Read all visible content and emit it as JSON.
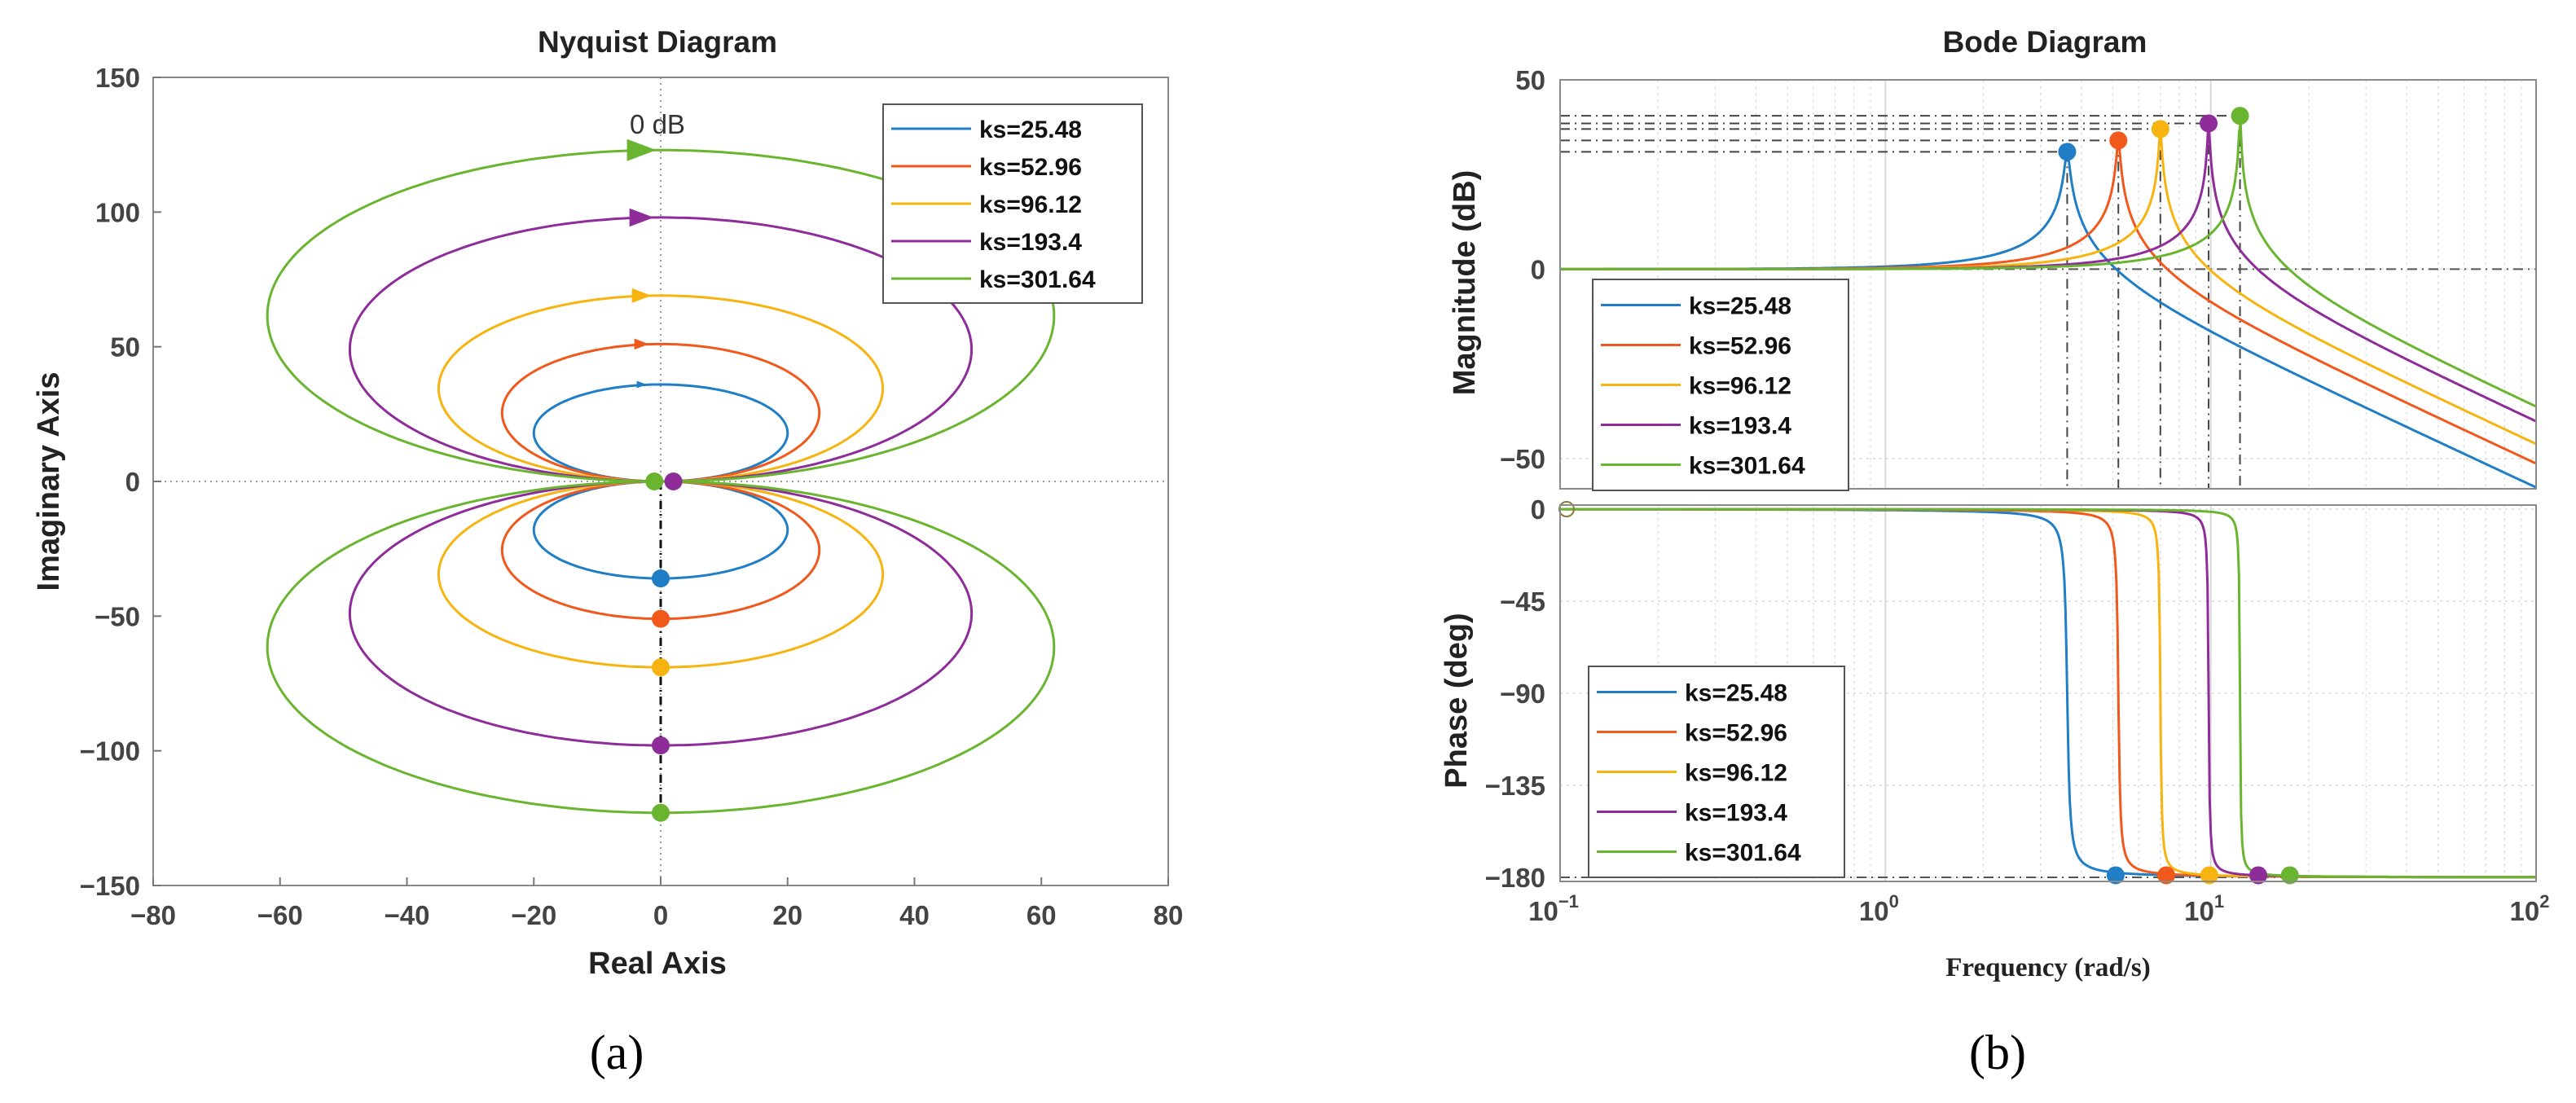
{
  "figure": {
    "panel_a_label": "(a)",
    "panel_b_label": "(b)"
  },
  "chart_data": [
    {
      "type": "line",
      "subtype": "nyquist",
      "title": "Nyquist Diagram",
      "xlabel": "Real Axis",
      "ylabel": "Imaginary Axis",
      "xlim": [
        -80,
        80
      ],
      "ylim": [
        -150,
        150
      ],
      "xticks": [
        -80,
        -60,
        -40,
        -20,
        0,
        20,
        40,
        60,
        80
      ],
      "yticks": [
        -150,
        -100,
        -50,
        0,
        50,
        100,
        150
      ],
      "annotation": "0 dB",
      "legend": "top-right",
      "series": [
        {
          "name": "ks=25.48",
          "color": "#1f7ec6",
          "half_width": 20,
          "half_height": 36,
          "outer_width": 20
        },
        {
          "name": "ks=52.96",
          "color": "#f0581c",
          "half_width": 25,
          "half_height": 51,
          "outer_width": 25
        },
        {
          "name": "ks=96.12",
          "color": "#f7b410",
          "half_width": 35,
          "half_height": 69,
          "outer_width": 35
        },
        {
          "name": "ks=193.4",
          "color": "#8e2d9a",
          "half_width": 49,
          "half_height": 98,
          "outer_width": 49
        },
        {
          "name": "ks=301.64",
          "color": "#6ab52f",
          "half_width": 62,
          "half_height": 123,
          "outer_width": 62
        }
      ]
    },
    {
      "type": "line",
      "subtype": "bode-magnitude",
      "title": "Bode Diagram",
      "ylabel": "Magnitude (dB)",
      "xscale": "log",
      "xlim": [
        0.1,
        100
      ],
      "ylim": [
        -58,
        50
      ],
      "yticks": [
        -50,
        0,
        50
      ],
      "legend": "bottom-left",
      "series": [
        {
          "name": "ks=25.48",
          "color": "#1f7ec6",
          "resonance_freq": 3.62,
          "peak_db": 31
        },
        {
          "name": "ks=52.96",
          "color": "#f0581c",
          "resonance_freq": 5.2,
          "peak_db": 34
        },
        {
          "name": "ks=96.12",
          "color": "#f7b410",
          "resonance_freq": 7.0,
          "peak_db": 37
        },
        {
          "name": "ks=193.4",
          "color": "#8e2d9a",
          "resonance_freq": 9.85,
          "peak_db": 38.5
        },
        {
          "name": "ks=301.64",
          "color": "#6ab52f",
          "resonance_freq": 12.3,
          "peak_db": 40.5
        }
      ]
    },
    {
      "type": "line",
      "subtype": "bode-phase",
      "ylabel": "Phase (deg)",
      "xlabel": "Frequency  (rad/s)",
      "xscale": "log",
      "xlim": [
        0.1,
        100
      ],
      "ylim": [
        -182,
        2
      ],
      "yticks": [
        0,
        -45,
        -90,
        -135,
        -180
      ],
      "xticks": [
        "10^-1",
        "10^0",
        "10^1",
        "10^2"
      ],
      "legend": "bottom-left",
      "series": [
        {
          "name": "ks=25.48",
          "color": "#1f7ec6",
          "transition_freq": 3.62,
          "marker_freq": 5.1
        },
        {
          "name": "ks=52.96",
          "color": "#f0581c",
          "transition_freq": 5.2,
          "marker_freq": 7.3
        },
        {
          "name": "ks=96.12",
          "color": "#f7b410",
          "transition_freq": 7.0,
          "marker_freq": 9.9
        },
        {
          "name": "ks=193.4",
          "color": "#8e2d9a",
          "transition_freq": 9.85,
          "marker_freq": 14.0
        },
        {
          "name": "ks=301.64",
          "color": "#6ab52f",
          "transition_freq": 12.3,
          "marker_freq": 17.5
        }
      ]
    }
  ]
}
